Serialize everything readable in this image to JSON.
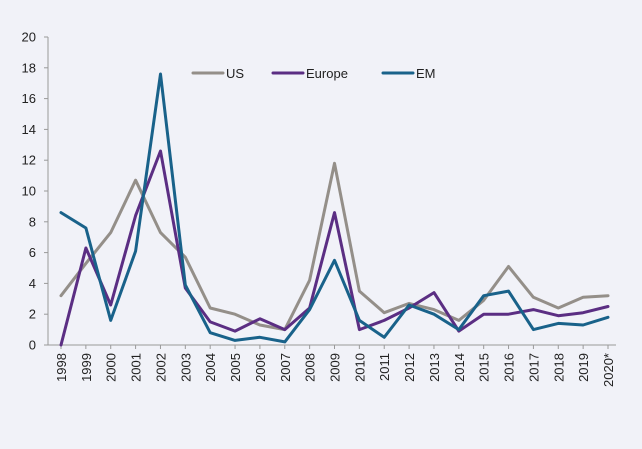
{
  "chart_data": {
    "type": "line",
    "title": "",
    "xlabel": "",
    "ylabel": "",
    "ylim": [
      0,
      20
    ],
    "yticks": [
      0,
      2,
      4,
      6,
      8,
      10,
      12,
      14,
      16,
      18,
      20
    ],
    "grid": false,
    "legend_position": "top-center",
    "categories": [
      "1998",
      "1999",
      "2000",
      "2001",
      "2002",
      "2003",
      "2004",
      "2005",
      "2006",
      "2007",
      "2008",
      "2009",
      "2010",
      "2011",
      "2012",
      "2013",
      "2014",
      "2015",
      "2016",
      "2017",
      "2018",
      "2019",
      "2020*"
    ],
    "series": [
      {
        "name": "US",
        "color": "#948f89",
        "values": [
          3.2,
          5.3,
          7.3,
          10.7,
          7.3,
          5.7,
          2.4,
          2.0,
          1.3,
          1.0,
          4.2,
          11.8,
          3.5,
          2.1,
          2.7,
          2.3,
          1.6,
          2.9,
          5.1,
          3.1,
          2.4,
          3.1,
          3.2
        ]
      },
      {
        "name": "Europe",
        "color": "#5b2e83",
        "values": [
          0.0,
          6.3,
          2.6,
          8.4,
          12.6,
          3.7,
          1.5,
          0.9,
          1.7,
          1.0,
          2.4,
          8.6,
          1.0,
          1.6,
          2.4,
          3.4,
          0.9,
          2.0,
          2.0,
          2.3,
          1.9,
          2.1,
          2.5
        ]
      },
      {
        "name": "EM",
        "color": "#19628a",
        "values": [
          8.6,
          7.6,
          1.6,
          6.1,
          17.6,
          3.9,
          0.8,
          0.3,
          0.5,
          0.2,
          2.3,
          5.5,
          1.6,
          0.5,
          2.6,
          2.0,
          1.0,
          3.2,
          3.5,
          1.0,
          1.4,
          1.3,
          1.8
        ]
      }
    ]
  }
}
